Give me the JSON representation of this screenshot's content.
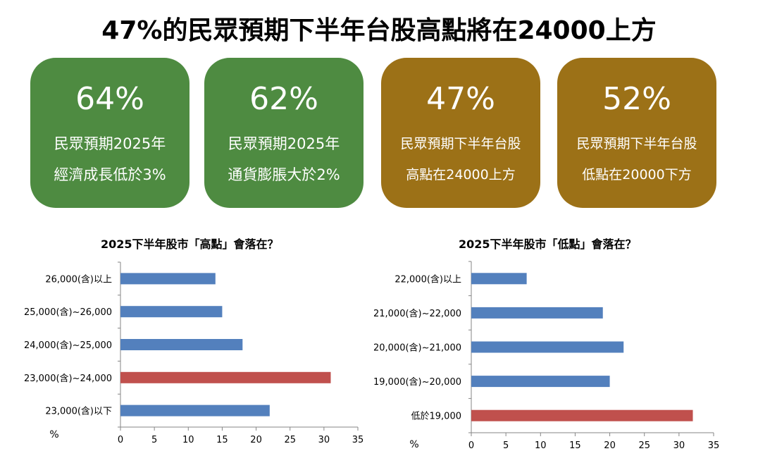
{
  "title": "47%的民眾預期下半年台股高點將在24000上方",
  "colors": {
    "green": "#4e8b41",
    "gold": "#9c7117",
    "bar_blue": "#5380bd",
    "bar_red": "#c0504d"
  },
  "cards": [
    {
      "pct": "64%",
      "line1": "民眾預期2025年",
      "line2": "經濟成長低於3%",
      "color": "#4e8b41"
    },
    {
      "pct": "62%",
      "line1": "民眾預期2025年",
      "line2": "通貨膨脹大於2%",
      "color": "#4e8b41"
    },
    {
      "pct": "47%",
      "line1": "民眾預期下半年台股",
      "line2": "高點在24000上方",
      "color": "#9c7117"
    },
    {
      "pct": "52%",
      "line1": "民眾預期下半年台股",
      "line2": "低點在20000下方",
      "color": "#9c7117"
    }
  ],
  "chart_data": [
    {
      "type": "bar",
      "orientation": "horizontal",
      "title": "2025下半年股市「高點」會落在？",
      "unit_label": "%",
      "categories": [
        "26,000(含)以上",
        "25,000(含)~26,000",
        "24,000(含)~25,000",
        "23,000(含)~24,000",
        "23,000(含)以下"
      ],
      "values": [
        14,
        15,
        18,
        31,
        22
      ],
      "highlight_index": 3,
      "xlim": [
        0,
        35
      ],
      "xticks": [
        0,
        5,
        10,
        15,
        20,
        25,
        30,
        35
      ],
      "grid": false
    },
    {
      "type": "bar",
      "orientation": "horizontal",
      "title": "2025下半年股市「低點」會落在？",
      "unit_label": "%",
      "categories": [
        "22,000(含)以上",
        "21,000(含)~22,000",
        "20,000(含)~21,000",
        "19,000(含)~20,000",
        "低於19,000"
      ],
      "values": [
        8,
        19,
        22,
        20,
        32
      ],
      "highlight_index": 4,
      "xlim": [
        0,
        35
      ],
      "xticks": [
        0,
        5,
        10,
        15,
        20,
        25,
        30,
        35
      ],
      "grid": false
    }
  ]
}
